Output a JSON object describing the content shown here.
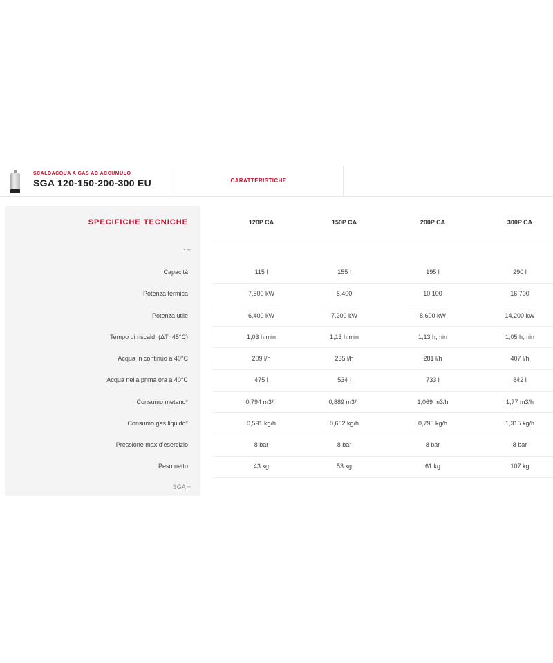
{
  "header": {
    "category": "SCALDACQUA A GAS AD ACCUMULO",
    "title": "SGA 120-150-200-300 EU",
    "tab": "CARATTERISTICHE"
  },
  "specs": {
    "section_title": "SPECIFICHE TECNICHE",
    "controls": "-   –",
    "footer_group": "SGA   +",
    "columns": [
      "120P CA",
      "150P CA",
      "200P CA",
      "300P CA"
    ],
    "rows": [
      {
        "label": "Capacità",
        "values": [
          "115 l",
          "155 l",
          "195 l",
          "290 l"
        ]
      },
      {
        "label": "Potenza termica",
        "values": [
          "7,500 kW",
          "8,400",
          "10,100",
          "16,700"
        ]
      },
      {
        "label": "Potenza utile",
        "values": [
          "6,400 kW",
          "7,200 kW",
          "8,600 kW",
          "14,200 kW"
        ]
      },
      {
        "label": "Tempo di riscald. (ΔT=45°C)",
        "values": [
          "1,03 h,min",
          "1,13 h,min",
          "1,13 h,min",
          "1,05 h,min"
        ]
      },
      {
        "label": "Acqua in continuo a 40°C",
        "values": [
          "209 l/h",
          "235 l/h",
          "281 l/h",
          "407 l/h"
        ]
      },
      {
        "label": "Acqua nella prima ora a 40°C",
        "values": [
          "475 l",
          "534 l",
          "733 l",
          "842 l"
        ]
      },
      {
        "label": "Consumo metano*",
        "values": [
          "0,794 m3/h",
          "0,889 m3/h",
          "1,069 m3/h",
          "1,77 m3/h"
        ]
      },
      {
        "label": "Consumo gas liquido*",
        "values": [
          "0,591 kg/h",
          "0,662 kg/h",
          "0,795 kg/h",
          "1,315 kg/h"
        ]
      },
      {
        "label": "Pressione max d'esercizio",
        "values": [
          "8 bar",
          "8 bar",
          "8 bar",
          "8 bar"
        ]
      },
      {
        "label": "Peso netto",
        "values": [
          "43 kg",
          "53 kg",
          "61 kg",
          "107 kg"
        ]
      }
    ]
  },
  "colors": {
    "accent": "#c8102e",
    "panel": "#f4f4f4"
  }
}
